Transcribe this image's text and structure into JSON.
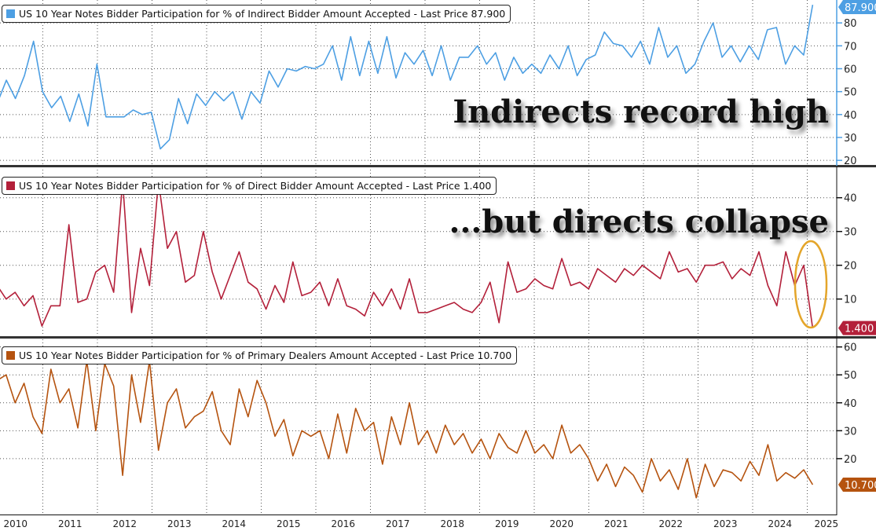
{
  "chart_data": [
    {
      "type": "line",
      "title": "US 10 Year Notes Bidder Participation for % of Indirect Bidder Amount Accepted - Last Price 87.900",
      "last_price": "87.900",
      "color": "#4d9fe3",
      "ylim": [
        18,
        90
      ],
      "yticks": [
        20,
        30,
        40,
        50,
        60,
        70,
        80
      ],
      "annotation": "Indirects record high",
      "x_start": 2010.0,
      "x_end": 2025.1,
      "values": [
        42,
        45,
        55,
        47,
        57,
        72,
        50,
        43,
        48,
        37,
        49,
        35,
        62,
        39,
        39,
        39,
        42,
        40,
        41,
        25,
        29,
        47,
        36,
        49,
        44,
        50,
        46,
        50,
        38,
        50,
        45,
        59,
        52,
        60,
        59,
        61,
        60,
        62,
        70,
        55,
        74,
        57,
        72,
        58,
        74,
        56,
        67,
        62,
        68,
        57,
        70,
        55,
        65,
        65,
        70,
        62,
        67,
        55,
        65,
        58,
        62,
        58,
        66,
        60,
        70,
        57,
        64,
        66,
        76,
        71,
        70,
        65,
        72,
        62,
        78,
        65,
        70,
        58,
        62,
        72,
        80,
        65,
        70,
        63,
        70,
        64,
        77,
        78,
        62,
        70,
        66,
        87.9
      ]
    },
    {
      "type": "line",
      "title": "US 10 Year Notes Bidder Participation for % of Direct Bidder Amount Accepted - Last Price 1.400",
      "last_price": "1.400",
      "color": "#b3203a",
      "ylim": [
        -1,
        49
      ],
      "yticks": [
        10,
        20,
        30,
        40
      ],
      "annotation": "...but directs collapse",
      "x_start": 2010.0,
      "x_end": 2025.1,
      "values": [
        24,
        14,
        10,
        12,
        8,
        11,
        2,
        8,
        8,
        32,
        9,
        10,
        18,
        20,
        12,
        45,
        6,
        25,
        14,
        45,
        25,
        30,
        15,
        17,
        30,
        18,
        10,
        17,
        24,
        15,
        13,
        7,
        14,
        9,
        21,
        11,
        12,
        15,
        8,
        16,
        8,
        7,
        5,
        12,
        8,
        13,
        7,
        16,
        6,
        6,
        7,
        8,
        9,
        7,
        6,
        9,
        15,
        3,
        21,
        12,
        13,
        16,
        14,
        13,
        22,
        14,
        15,
        13,
        19,
        17,
        15,
        19,
        17,
        20,
        18,
        16,
        24,
        18,
        19,
        15,
        20,
        20,
        21,
        16,
        19,
        17,
        24,
        14,
        8,
        24,
        14,
        20,
        1.4
      ]
    },
    {
      "type": "line",
      "title": "US 10 Year Notes Bidder Participation for % of Primary Dealers Amount Accepted - Last Price 10.700",
      "last_price": "10.700",
      "color": "#b5530f",
      "ylim": [
        0,
        63
      ],
      "yticks": [
        20,
        30,
        40,
        50,
        60
      ],
      "x_start": 2010.0,
      "x_end": 2025.1,
      "values": [
        34,
        48,
        50,
        40,
        47,
        35,
        29,
        52,
        40,
        45,
        31,
        55,
        30,
        54,
        46,
        14,
        50,
        33,
        55,
        23,
        40,
        45,
        31,
        35,
        37,
        44,
        30,
        25,
        45,
        35,
        48,
        40,
        28,
        34,
        21,
        30,
        28,
        30,
        20,
        36,
        22,
        38,
        30,
        33,
        18,
        35,
        25,
        40,
        25,
        30,
        22,
        32,
        25,
        29,
        22,
        27,
        20,
        29,
        24,
        22,
        30,
        22,
        25,
        20,
        32,
        22,
        25,
        20,
        12,
        18,
        10,
        17,
        14,
        8,
        20,
        12,
        16,
        9,
        20,
        6,
        18,
        10,
        16,
        15,
        12,
        19,
        14,
        25,
        12,
        15,
        13,
        16,
        10.7
      ]
    }
  ],
  "x_axis": {
    "labels": [
      "2010",
      "2011",
      "2012",
      "2013",
      "2014",
      "2015",
      "2016",
      "2017",
      "2018",
      "2019",
      "2020",
      "2021",
      "2022",
      "2023",
      "2024",
      "2025"
    ]
  }
}
